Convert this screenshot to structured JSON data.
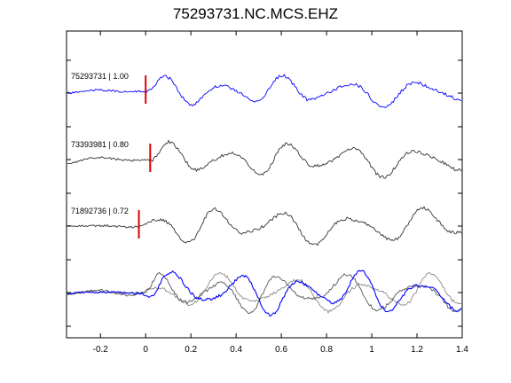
{
  "title": "75293731.NC.MCS.EHZ",
  "chart_data": {
    "type": "line",
    "xlim": [
      -0.35,
      1.4
    ],
    "x_ticks": [
      -0.2,
      0,
      0.2,
      0.4,
      0.6,
      0.8,
      1,
      1.2,
      1.4
    ],
    "x_tick_labels": [
      "-0.2",
      "0",
      "0.2",
      "0.4",
      "0.6",
      "0.8",
      "1",
      "1.2",
      "1.4"
    ],
    "traces": [
      {
        "label": "75293731 | 1.00",
        "color": "#0000ff",
        "pick_time": 0.0
      },
      {
        "label": "73393981 | 0.80",
        "color": "#333333",
        "pick_time": 0.02
      },
      {
        "label": "71892736 | 0.72",
        "color": "#333333",
        "pick_time": -0.03
      }
    ],
    "stack": {
      "colors": [
        "#888888",
        "#555555",
        "#0000ff"
      ]
    },
    "pick_marker_color": "#dd0000"
  }
}
